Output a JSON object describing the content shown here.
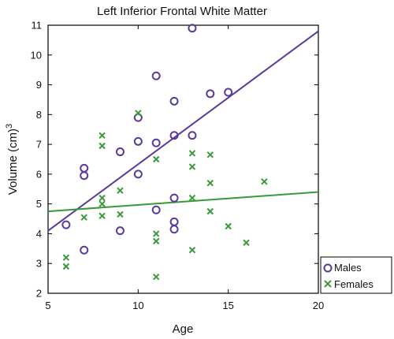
{
  "chart_data": {
    "type": "scatter",
    "title": "Left Inferior Frontal White Matter",
    "xlabel": "Age",
    "ylabel_main": "Volume (cm)",
    "ylabel_sup": "3",
    "xlim": [
      5,
      20
    ],
    "ylim": [
      2,
      11
    ],
    "xticks": [
      5,
      10,
      15,
      20
    ],
    "yticks": [
      2,
      3,
      4,
      5,
      6,
      7,
      8,
      9,
      10,
      11
    ],
    "grid": false,
    "legend_position": "bottom-right",
    "series": [
      {
        "name": "Males",
        "marker": "circle",
        "color": "#5a3a9a",
        "points": [
          [
            6,
            4.3
          ],
          [
            7,
            3.45
          ],
          [
            7,
            5.95
          ],
          [
            7,
            6.2
          ],
          [
            9,
            4.1
          ],
          [
            9,
            6.75
          ],
          [
            10,
            6.0
          ],
          [
            10,
            7.1
          ],
          [
            10,
            7.9
          ],
          [
            11,
            4.8
          ],
          [
            11,
            7.05
          ],
          [
            11,
            9.3
          ],
          [
            12,
            4.15
          ],
          [
            12,
            4.4
          ],
          [
            12,
            5.2
          ],
          [
            12,
            7.3
          ],
          [
            12,
            8.45
          ],
          [
            13,
            7.3
          ],
          [
            13,
            10.9
          ],
          [
            14,
            8.7
          ],
          [
            15,
            8.75
          ]
        ],
        "fit_line": [
          [
            5,
            4.1
          ],
          [
            20,
            10.8
          ]
        ]
      },
      {
        "name": "Females",
        "marker": "x",
        "color": "#3a9a3a",
        "points": [
          [
            6,
            2.9
          ],
          [
            6,
            3.2
          ],
          [
            7,
            4.55
          ],
          [
            8,
            4.6
          ],
          [
            8,
            5.0
          ],
          [
            8,
            5.2
          ],
          [
            8,
            6.95
          ],
          [
            8,
            7.3
          ],
          [
            9,
            4.65
          ],
          [
            9,
            5.45
          ],
          [
            10,
            8.05
          ],
          [
            11,
            2.55
          ],
          [
            11,
            3.75
          ],
          [
            11,
            4.0
          ],
          [
            11,
            6.5
          ],
          [
            13,
            3.45
          ],
          [
            13,
            5.2
          ],
          [
            13,
            6.25
          ],
          [
            13,
            6.7
          ],
          [
            14,
            4.75
          ],
          [
            14,
            5.7
          ],
          [
            14,
            6.65
          ],
          [
            15,
            4.25
          ],
          [
            16,
            3.7
          ],
          [
            17,
            5.75
          ]
        ],
        "fit_line": [
          [
            5,
            4.75
          ],
          [
            20,
            5.4
          ]
        ]
      }
    ]
  }
}
